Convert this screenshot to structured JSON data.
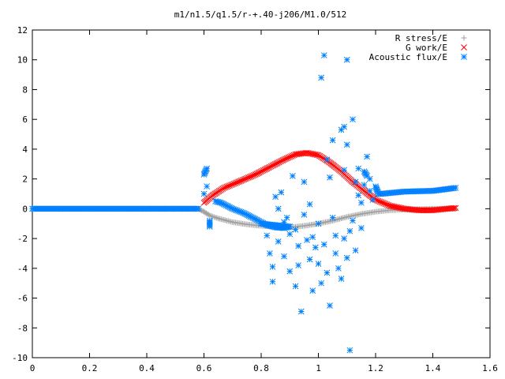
{
  "chart_data": {
    "type": "scatter",
    "title": "m1/n1.5/q1.5/r-+.40-j206/M1.0/512",
    "xlabel": "",
    "ylabel": "",
    "xlim": [
      0,
      1.6
    ],
    "ylim": [
      -10,
      12
    ],
    "x_ticks": [
      "0",
      "0.2",
      "0.4",
      "0.6",
      "0.8",
      "1",
      "1.2",
      "1.4",
      "1.6"
    ],
    "y_ticks": [
      "-10",
      "-8",
      "-6",
      "-4",
      "-2",
      "0",
      "2",
      "4",
      "6",
      "8",
      "10",
      "12"
    ],
    "grid": false,
    "legend_position": "top-right",
    "series": [
      {
        "name": "R stress/E",
        "marker": "plus",
        "color": "#a0a0a0",
        "points": [
          [
            0.0,
            0.0
          ],
          [
            0.1,
            0.0
          ],
          [
            0.2,
            0.0
          ],
          [
            0.3,
            0.0
          ],
          [
            0.4,
            0.0
          ],
          [
            0.5,
            0.0
          ],
          [
            0.58,
            0.0
          ],
          [
            0.6,
            -0.2
          ],
          [
            0.62,
            -0.45
          ],
          [
            0.65,
            -0.65
          ],
          [
            0.7,
            -0.9
          ],
          [
            0.75,
            -1.05
          ],
          [
            0.8,
            -1.15
          ],
          [
            0.85,
            -1.2
          ],
          [
            0.9,
            -1.25
          ],
          [
            0.95,
            -1.15
          ],
          [
            1.0,
            -1.0
          ],
          [
            1.05,
            -0.8
          ],
          [
            1.1,
            -0.55
          ],
          [
            1.15,
            -0.35
          ],
          [
            1.2,
            -0.2
          ],
          [
            1.25,
            -0.1
          ],
          [
            1.3,
            -0.05
          ],
          [
            1.4,
            0.0
          ],
          [
            1.48,
            0.0
          ]
        ]
      },
      {
        "name": "G work/E",
        "marker": "cross",
        "color": "#ff0000",
        "points": [
          [
            0.6,
            0.4
          ],
          [
            0.63,
            0.9
          ],
          [
            0.67,
            1.4
          ],
          [
            0.72,
            1.8
          ],
          [
            0.78,
            2.3
          ],
          [
            0.83,
            2.8
          ],
          [
            0.88,
            3.3
          ],
          [
            0.92,
            3.65
          ],
          [
            0.96,
            3.75
          ],
          [
            1.0,
            3.6
          ],
          [
            1.04,
            3.1
          ],
          [
            1.08,
            2.5
          ],
          [
            1.12,
            1.8
          ],
          [
            1.16,
            1.2
          ],
          [
            1.2,
            0.6
          ],
          [
            1.25,
            0.2
          ],
          [
            1.3,
            0.0
          ],
          [
            1.35,
            -0.1
          ],
          [
            1.4,
            -0.1
          ],
          [
            1.45,
            0.0
          ],
          [
            1.48,
            0.05
          ]
        ]
      },
      {
        "name": "Acoustic flux/E",
        "marker": "star",
        "color": "#0080ff",
        "points": [
          [
            0.0,
            0.0
          ],
          [
            0.05,
            0.0
          ],
          [
            0.1,
            0.0
          ],
          [
            0.15,
            0.0
          ],
          [
            0.2,
            0.0
          ],
          [
            0.25,
            0.0
          ],
          [
            0.3,
            0.0
          ],
          [
            0.35,
            0.0
          ],
          [
            0.4,
            0.0
          ],
          [
            0.45,
            0.0
          ],
          [
            0.5,
            0.0
          ],
          [
            0.55,
            0.0
          ],
          [
            0.58,
            0.0
          ],
          [
            0.6,
            1.0
          ],
          [
            0.6,
            2.3
          ],
          [
            0.61,
            2.7
          ],
          [
            0.61,
            1.5
          ],
          [
            0.62,
            -0.8
          ],
          [
            0.62,
            -1.2
          ],
          [
            0.64,
            0.5
          ],
          [
            0.66,
            0.4
          ],
          [
            0.7,
            0.0
          ],
          [
            0.74,
            -0.3
          ],
          [
            0.78,
            -0.7
          ],
          [
            0.82,
            -1.1
          ],
          [
            0.85,
            -1.25
          ],
          [
            0.88,
            -1.3
          ],
          [
            0.9,
            -1.2
          ],
          [
            0.8,
            -1.0
          ],
          [
            0.82,
            -1.8
          ],
          [
            0.83,
            -3.0
          ],
          [
            0.84,
            -3.9
          ],
          [
            0.84,
            -4.9
          ],
          [
            0.85,
            0.8
          ],
          [
            0.86,
            -2.2
          ],
          [
            0.86,
            0.0
          ],
          [
            0.87,
            1.1
          ],
          [
            0.88,
            -0.9
          ],
          [
            0.88,
            -3.2
          ],
          [
            0.89,
            -0.6
          ],
          [
            0.9,
            -1.7
          ],
          [
            0.9,
            -4.2
          ],
          [
            0.91,
            2.2
          ],
          [
            0.92,
            -1.4
          ],
          [
            0.92,
            -5.2
          ],
          [
            0.93,
            -2.5
          ],
          [
            0.93,
            -3.8
          ],
          [
            0.94,
            -6.9
          ],
          [
            0.95,
            1.8
          ],
          [
            0.95,
            -0.4
          ],
          [
            0.96,
            -2.1
          ],
          [
            0.97,
            -3.4
          ],
          [
            0.97,
            0.3
          ],
          [
            0.98,
            -1.9
          ],
          [
            0.98,
            -5.5
          ],
          [
            0.99,
            -2.6
          ],
          [
            1.0,
            -3.7
          ],
          [
            1.0,
            -1.0
          ],
          [
            1.01,
            -5.0
          ],
          [
            1.01,
            8.8
          ],
          [
            1.02,
            10.3
          ],
          [
            1.02,
            -2.4
          ],
          [
            1.03,
            -4.3
          ],
          [
            1.03,
            3.3
          ],
          [
            1.04,
            -6.5
          ],
          [
            1.04,
            2.1
          ],
          [
            1.05,
            -0.6
          ],
          [
            1.05,
            4.6
          ],
          [
            1.06,
            -1.8
          ],
          [
            1.06,
            -3.0
          ],
          [
            1.07,
            -4.0
          ],
          [
            1.08,
            5.3
          ],
          [
            1.08,
            -4.7
          ],
          [
            1.09,
            5.5
          ],
          [
            1.09,
            -2.0
          ],
          [
            1.09,
            2.6
          ],
          [
            1.1,
            4.3
          ],
          [
            1.1,
            -3.3
          ],
          [
            1.1,
            10.0
          ],
          [
            1.11,
            -1.5
          ],
          [
            1.11,
            -9.5
          ],
          [
            1.12,
            6.0
          ],
          [
            1.12,
            -0.8
          ],
          [
            1.13,
            1.8
          ],
          [
            1.13,
            -2.8
          ],
          [
            1.14,
            2.7
          ],
          [
            1.14,
            0.9
          ],
          [
            1.15,
            -1.3
          ],
          [
            1.15,
            0.4
          ],
          [
            1.16,
            1.6
          ],
          [
            1.16,
            2.5
          ],
          [
            1.17,
            2.2
          ],
          [
            1.17,
            3.5
          ],
          [
            1.18,
            1.2
          ],
          [
            1.18,
            2.0
          ],
          [
            1.19,
            0.6
          ],
          [
            1.2,
            1.5
          ],
          [
            1.21,
            1.0
          ],
          [
            1.22,
            1.0
          ],
          [
            1.3,
            1.15
          ],
          [
            1.4,
            1.2
          ],
          [
            1.48,
            1.4
          ]
        ]
      }
    ]
  }
}
